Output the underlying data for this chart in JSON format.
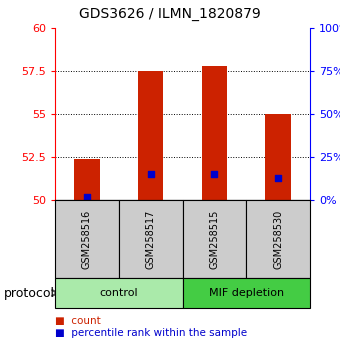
{
  "title": "GDS3626 / ILMN_1820879",
  "samples": [
    "GSM258516",
    "GSM258517",
    "GSM258515",
    "GSM258530"
  ],
  "bar_tops": [
    52.4,
    57.5,
    57.8,
    55.0
  ],
  "bar_base": 50.0,
  "blue_values": [
    50.15,
    51.5,
    51.5,
    51.3
  ],
  "bar_color": "#cc2200",
  "blue_color": "#0000cc",
  "ylim": [
    50,
    60
  ],
  "y_left_ticks": [
    50,
    52.5,
    55,
    57.5,
    60
  ],
  "y_right_ticks": [
    0,
    25,
    50,
    75,
    100
  ],
  "groups": [
    {
      "label": "control",
      "indices": [
        0,
        1
      ],
      "color": "#aaeaaa"
    },
    {
      "label": "MIF depletion",
      "indices": [
        2,
        3
      ],
      "color": "#44cc44"
    }
  ],
  "bar_width": 0.4,
  "legend_count_label": "count",
  "legend_pct_label": "percentile rank within the sample",
  "protocol_label": "protocol",
  "sample_box_color": "#cccccc",
  "grid_color": "#000000",
  "grid_lw": 0.7
}
